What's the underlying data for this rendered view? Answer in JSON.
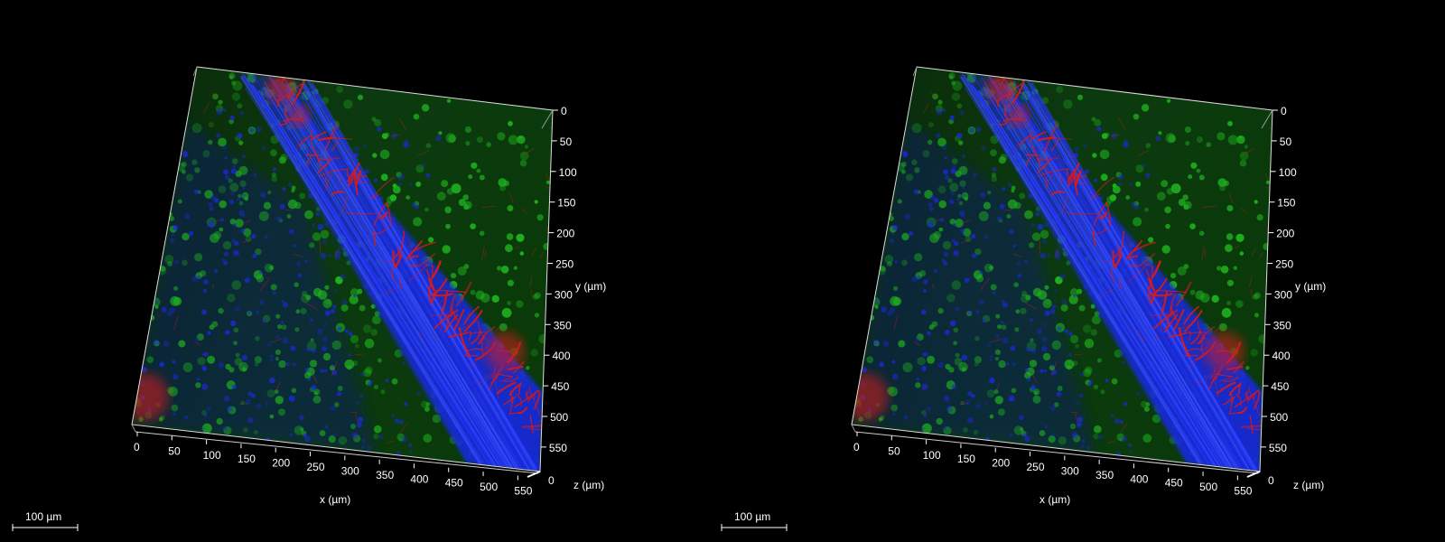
{
  "scene": {
    "background": "#000000",
    "channels": {
      "red": "#d81a1a",
      "green": "#1fb01f",
      "blue": "#1a2ad8"
    }
  },
  "views": [
    {
      "y_axis": {
        "label": "y (µm)",
        "ticks": [
          "0",
          "50",
          "100",
          "150",
          "200",
          "250",
          "300",
          "350",
          "400",
          "450",
          "500",
          "550"
        ]
      },
      "x_axis": {
        "label": "x (µm)",
        "ticks": [
          "0",
          "50",
          "100",
          "150",
          "200",
          "250",
          "300",
          "350",
          "400",
          "450",
          "500",
          "550"
        ]
      },
      "z_axis": {
        "label": "z (µm)",
        "tick": "0"
      },
      "scale_bar": {
        "label": "100 µm",
        "length_um": 100
      }
    },
    {
      "y_axis": {
        "label": "y (µm)",
        "ticks": [
          "0",
          "50",
          "100",
          "150",
          "200",
          "250",
          "300",
          "350",
          "400",
          "450",
          "500",
          "550"
        ]
      },
      "x_axis": {
        "label": "x (µm)",
        "ticks": [
          "0",
          "50",
          "100",
          "150",
          "200",
          "250",
          "300",
          "350",
          "400",
          "450",
          "500",
          "550"
        ]
      },
      "z_axis": {
        "label": "z (µm)",
        "tick": "0"
      },
      "scale_bar": {
        "label": "100 µm",
        "length_um": 100
      }
    }
  ]
}
